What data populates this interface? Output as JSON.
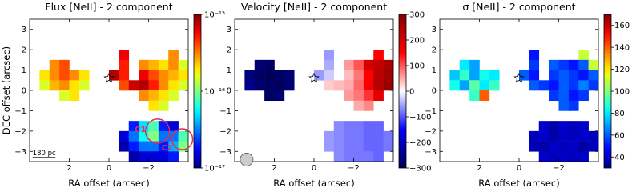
{
  "chart_data": [
    {
      "type": "heatmap",
      "title": "Flux [NeII] - 2 component",
      "xlabel": "RA offset (arcsec)",
      "ylabel": "DEC offset (arcsec)",
      "colormap": "jet",
      "log_scale": true,
      "x": [
        3.25,
        2.75,
        2.25,
        1.75,
        1.25,
        0.75,
        0.25,
        -0.25,
        -0.75,
        -1.25,
        -1.75,
        -2.25,
        -2.75,
        -3.25,
        -3.75
      ],
      "y": [
        1.75,
        1.25,
        0.75,
        0.25,
        -0.25,
        -0.75,
        -1.25,
        -1.75,
        -2.25,
        -2.75,
        -3.25
      ],
      "values": [
        [
          null,
          null,
          null,
          null,
          null,
          null,
          null,
          null,
          6e-16,
          null,
          null,
          null,
          null,
          3e-16,
          null
        ],
        [
          null,
          3e-16,
          4e-16,
          null,
          null,
          null,
          null,
          null,
          5e-16,
          null,
          3e-16,
          2.5e-16,
          2e-16,
          3e-16,
          1.5e-16
        ],
        [
          2e-16,
          3e-16,
          4e-16,
          3e-16,
          2e-16,
          null,
          null,
          8e-16,
          5e-16,
          null,
          6e-16,
          4e-16,
          3e-16,
          2.5e-16,
          2e-16
        ],
        [
          1.5e-16,
          2.5e-16,
          3e-16,
          2e-16,
          1.5e-16,
          null,
          null,
          null,
          4e-16,
          7e-16,
          8e-16,
          5e-16,
          3e-16,
          2e-16,
          1.5e-16
        ],
        [
          null,
          null,
          1.5e-16,
          2e-16,
          null,
          null,
          null,
          null,
          null,
          null,
          3e-16,
          2.5e-16,
          2e-16,
          1.5e-16,
          null
        ],
        [
          null,
          null,
          null,
          null,
          null,
          null,
          null,
          null,
          null,
          null,
          null,
          2e-16,
          1.5e-16,
          null,
          null
        ],
        [
          null,
          null,
          null,
          null,
          null,
          null,
          null,
          null,
          null,
          null,
          null,
          null,
          null,
          null,
          null
        ],
        [
          null,
          null,
          null,
          null,
          null,
          null,
          null,
          null,
          null,
          2e-17,
          5e-17,
          8e-17,
          2e-17,
          1.5e-17,
          null
        ],
        [
          null,
          null,
          null,
          null,
          null,
          null,
          null,
          null,
          1.5e-17,
          3e-17,
          6e-17,
          1e-16,
          3e-17,
          3e-17,
          8e-17
        ],
        [
          null,
          null,
          null,
          null,
          null,
          null,
          null,
          null,
          1.2e-17,
          2e-17,
          3e-17,
          3e-17,
          2e-17,
          4e-17,
          1e-16
        ],
        [
          null,
          null,
          null,
          null,
          null,
          null,
          null,
          null,
          null,
          1.2e-17,
          1.5e-17,
          1.5e-17,
          1.5e-17,
          2e-17,
          null
        ]
      ],
      "xlim": [
        4,
        -4
      ],
      "ylim": [
        -3.5,
        3.5
      ],
      "xticks": [
        2,
        0,
        {
          "value": -2,
          "label": "−2"
        }
      ],
      "yticks": [
        {
          "value": -3,
          "label": "−3"
        },
        {
          "value": -2,
          "label": "−2"
        },
        {
          "value": -1,
          "label": "−1"
        },
        0,
        1,
        2,
        3
      ],
      "zlim": [
        1e-17,
        1e-15
      ],
      "zticks": [
        {
          "value": 1e-17,
          "label": "10⁻¹⁷"
        },
        {
          "value": 1e-16,
          "label": "10⁻¹⁶"
        },
        {
          "value": 1e-15,
          "label": "10⁻¹⁵"
        }
      ],
      "annotations": [
        "C1",
        "C2",
        "180 pc"
      ]
    },
    {
      "type": "heatmap",
      "title": "Velocity [NeII] - 2 component",
      "xlabel": "RA offset (arcsec)",
      "colormap": "seismic",
      "log_scale": false,
      "x": [
        3.25,
        2.75,
        2.25,
        1.75,
        1.25,
        0.75,
        0.25,
        -0.25,
        -0.75,
        -1.25,
        -1.75,
        -2.25,
        -2.75,
        -3.25,
        -3.75
      ],
      "y": [
        1.75,
        1.25,
        0.75,
        0.25,
        -0.25,
        -0.75,
        -1.25,
        -1.75,
        -2.25,
        -2.75,
        -3.25
      ],
      "values": [
        [
          null,
          null,
          null,
          null,
          null,
          null,
          null,
          null,
          -60,
          null,
          null,
          null,
          null,
          150,
          null
        ],
        [
          null,
          -270,
          -280,
          null,
          null,
          null,
          null,
          null,
          -50,
          null,
          60,
          100,
          200,
          220,
          250
        ],
        [
          -260,
          -280,
          -290,
          -280,
          -270,
          null,
          null,
          -60,
          -30,
          null,
          40,
          80,
          150,
          230,
          260
        ],
        [
          -250,
          -270,
          -280,
          -290,
          -270,
          null,
          null,
          null,
          30,
          40,
          50,
          90,
          160,
          240,
          270
        ],
        [
          null,
          null,
          -280,
          -270,
          null,
          null,
          null,
          null,
          null,
          null,
          60,
          80,
          120,
          180,
          null
        ],
        [
          null,
          null,
          null,
          null,
          null,
          null,
          null,
          null,
          null,
          null,
          null,
          50,
          70,
          null,
          null
        ],
        [
          null,
          null,
          null,
          null,
          null,
          null,
          null,
          null,
          null,
          null,
          null,
          null,
          null,
          null,
          null
        ],
        [
          null,
          null,
          null,
          null,
          null,
          null,
          null,
          null,
          null,
          -70,
          -80,
          -80,
          -90,
          -90,
          null
        ],
        [
          null,
          null,
          null,
          null,
          null,
          null,
          null,
          null,
          -60,
          -70,
          -80,
          -80,
          -90,
          -90,
          -80
        ],
        [
          null,
          null,
          null,
          null,
          null,
          null,
          null,
          null,
          -60,
          -70,
          -80,
          -80,
          -90,
          -90,
          -80
        ],
        [
          null,
          null,
          null,
          null,
          null,
          null,
          null,
          null,
          null,
          -70,
          -80,
          -80,
          -80,
          -90,
          null
        ]
      ],
      "xlim": [
        4,
        -4
      ],
      "ylim": [
        -3.5,
        3.5
      ],
      "xticks": [
        2,
        0,
        {
          "value": -2,
          "label": "−2"
        }
      ],
      "yticks": [
        {
          "value": -3,
          "label": "−3"
        },
        {
          "value": -2,
          "label": "−2"
        },
        {
          "value": -1,
          "label": "−1"
        },
        0,
        1,
        2,
        3
      ],
      "zlim": [
        -300,
        300
      ],
      "zticks": [
        {
          "value": -300,
          "label": "−300"
        },
        {
          "value": -200,
          "label": "−200"
        },
        {
          "value": -100,
          "label": "−100"
        },
        0,
        100,
        200,
        300
      ]
    },
    {
      "type": "heatmap",
      "title": "σ [NeII] - 2 component",
      "xlabel": "RA offset (arcsec)",
      "colormap": "jet",
      "log_scale": false,
      "x": [
        3.25,
        2.75,
        2.25,
        1.75,
        1.25,
        0.75,
        0.25,
        -0.25,
        -0.75,
        -1.25,
        -1.75,
        -2.25,
        -2.75,
        -3.25,
        -3.75
      ],
      "y": [
        1.75,
        1.25,
        0.75,
        0.25,
        -0.25,
        -0.75,
        -1.25,
        -1.75,
        -2.25,
        -2.75,
        -3.25
      ],
      "values": [
        [
          null,
          null,
          null,
          null,
          null,
          null,
          null,
          null,
          50,
          null,
          null,
          null,
          null,
          110,
          null
        ],
        [
          null,
          80,
          70,
          null,
          null,
          null,
          null,
          null,
          55,
          null,
          60,
          55,
          50,
          60,
          110
        ],
        [
          75,
          90,
          70,
          85,
          80,
          null,
          null,
          60,
          50,
          null,
          55,
          60,
          55,
          50,
          60
        ],
        [
          85,
          70,
          95,
          80,
          90,
          null,
          null,
          null,
          60,
          55,
          50,
          60,
          55,
          65,
          55
        ],
        [
          null,
          null,
          90,
          140,
          null,
          null,
          null,
          null,
          null,
          null,
          55,
          60,
          50,
          55,
          null
        ],
        [
          null,
          null,
          null,
          null,
          null,
          null,
          null,
          null,
          null,
          null,
          null,
          60,
          55,
          null,
          null
        ],
        [
          null,
          null,
          null,
          null,
          null,
          null,
          null,
          null,
          null,
          null,
          null,
          null,
          null,
          null,
          null
        ],
        [
          null,
          null,
          null,
          null,
          null,
          null,
          null,
          null,
          null,
          40,
          35,
          40,
          38,
          40,
          null
        ],
        [
          null,
          null,
          null,
          null,
          null,
          null,
          null,
          null,
          38,
          40,
          35,
          40,
          38,
          40,
          38
        ],
        [
          null,
          null,
          null,
          null,
          null,
          null,
          null,
          null,
          38,
          35,
          40,
          38,
          40,
          35,
          38
        ],
        [
          null,
          null,
          null,
          null,
          null,
          null,
          null,
          null,
          null,
          40,
          38,
          40,
          38,
          40,
          null
        ]
      ],
      "xlim": [
        4,
        -4
      ],
      "ylim": [
        -3.5,
        3.5
      ],
      "xticks": [
        2,
        0,
        {
          "value": -2,
          "label": "−2"
        }
      ],
      "yticks": [
        {
          "value": -3,
          "label": "−3"
        },
        {
          "value": -2,
          "label": "−2"
        },
        {
          "value": -1,
          "label": "−1"
        },
        0,
        1,
        2,
        3
      ],
      "zlim": [
        30,
        170
      ],
      "zticks": [
        40,
        60,
        80,
        100,
        120,
        140,
        160
      ]
    }
  ]
}
